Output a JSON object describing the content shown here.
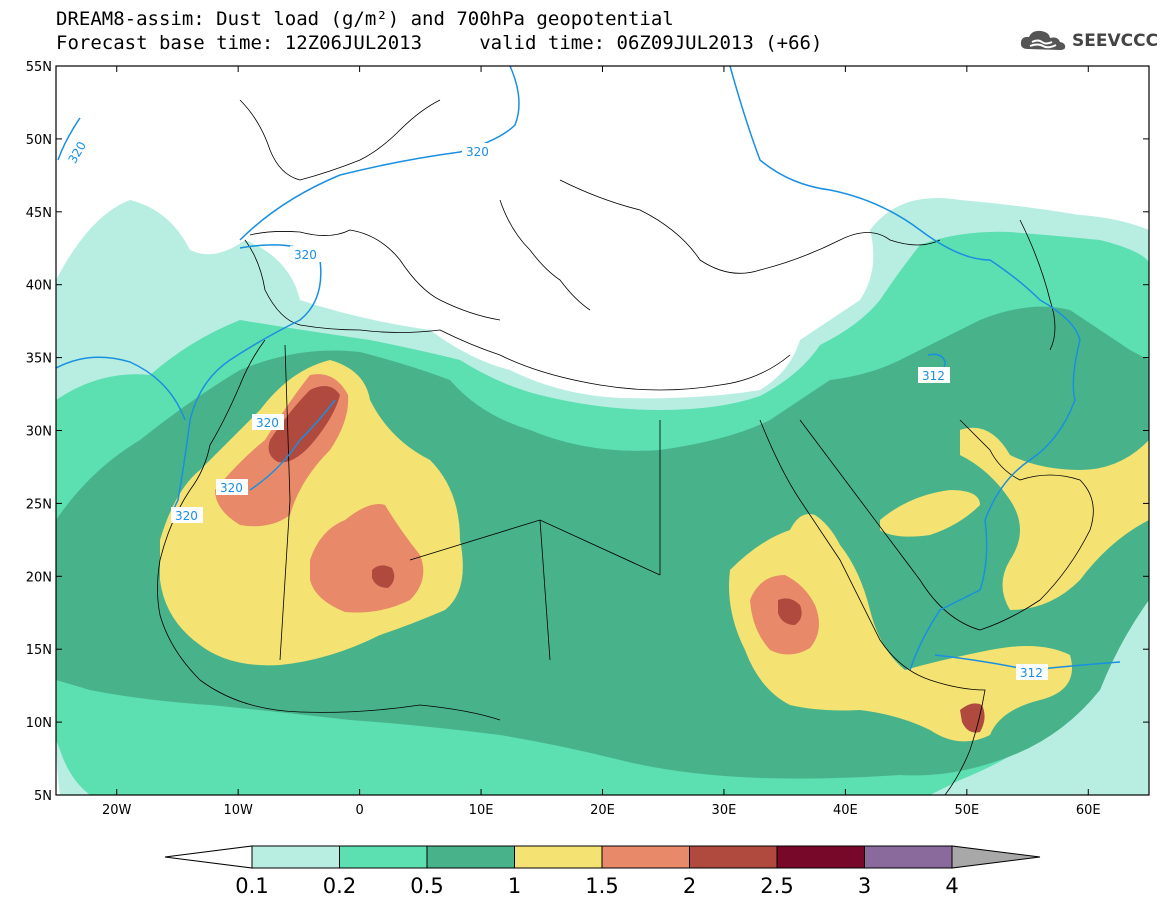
{
  "title": {
    "line1": "DREAM8-assim: Dust load (g/m²) and 700hPa geopotential",
    "line2": "Forecast base time: 12Z06JUL2013     valid time: 06Z09JUL2013 (+66)"
  },
  "logo": {
    "text": "SEEVCCC",
    "icon": "cloud-icon"
  },
  "axes": {
    "lat_labels": [
      "55N",
      "50N",
      "45N",
      "40N",
      "35N",
      "30N",
      "25N",
      "20N",
      "15N",
      "10N",
      "5N"
    ],
    "lat_values": [
      55,
      50,
      45,
      40,
      35,
      30,
      25,
      20,
      15,
      10,
      5
    ],
    "lon_labels": [
      "20W",
      "10W",
      "0",
      "10E",
      "20E",
      "30E",
      "40E",
      "50E",
      "60E"
    ],
    "lon_values": [
      -20,
      -10,
      0,
      10,
      20,
      30,
      40,
      50,
      60
    ],
    "lon_range": [
      -25,
      65
    ],
    "lat_range": [
      5,
      55
    ]
  },
  "colorbar": {
    "labels": [
      "0.1",
      "0.2",
      "0.5",
      "1",
      "1.5",
      "2",
      "2.5",
      "3",
      "4"
    ],
    "colors": [
      "#b8eee2",
      "#5cdfb1",
      "#48b38b",
      "#f4e272",
      "#e8896a",
      "#b04a3e",
      "#78082a",
      "#8a6a9c"
    ],
    "under_color": "#ffffff",
    "over_color": "#a8a8a8"
  },
  "contour_labels": [
    "320",
    "320",
    "320",
    "320",
    "320",
    "320",
    "312",
    "312"
  ],
  "contour_color": "#1a8fe0",
  "colors": {
    "c1": "#b8eee2",
    "c2": "#5cdfb1",
    "c3": "#48b38b",
    "c4": "#f4e272",
    "c5": "#e8896a",
    "c6": "#b04a3e",
    "c7": "#78082a"
  }
}
